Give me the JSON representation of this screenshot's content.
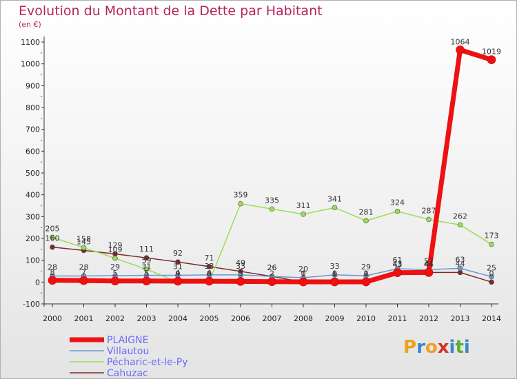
{
  "header": {
    "title": "Evolution du Montant de la Dette par Habitant",
    "unit": "(en €)"
  },
  "logo": {
    "text": "Proxiti",
    "letters": [
      "P",
      "r",
      "o",
      "x",
      "i",
      "t",
      "i"
    ],
    "colors": [
      "#f0a020",
      "#3b88c8",
      "#f0a020",
      "#d83028",
      "#3b88c8",
      "#58b030",
      "#3b88c8"
    ]
  },
  "chart_data": {
    "type": "line",
    "title": "Evolution du Montant de la Dette par Habitant",
    "ylabel": "(en €)",
    "xlabel": "",
    "ylim": [
      -100,
      1100
    ],
    "yticks": [
      -100,
      0,
      100,
      200,
      300,
      400,
      500,
      600,
      700,
      800,
      900,
      1000,
      1100
    ],
    "x": [
      2000,
      2001,
      2002,
      2003,
      2004,
      2005,
      2006,
      2007,
      2008,
      2009,
      2010,
      2011,
      2012,
      2013,
      2014
    ],
    "grid": false,
    "legend_position": "bottom-left",
    "series": [
      {
        "name": "Villautou",
        "color": "#6699cc",
        "values": [
          28,
          28,
          29,
          31,
          31,
          33,
          33,
          26,
          20,
          33,
          29,
          61,
          57,
          63,
          25
        ]
      },
      {
        "name": "Pécharic-et-le-Py",
        "color": "#99dd55",
        "values": [
          205,
          158,
          109,
          59,
          0,
          0,
          359,
          335,
          311,
          341,
          281,
          324,
          287,
          262,
          173
        ]
      },
      {
        "name": "Cahuzac",
        "color": "#7a2a2a",
        "values": [
          160,
          145,
          129,
          111,
          92,
          71,
          49,
          26,
          0,
          0,
          0,
          43,
          44,
          44,
          0
        ]
      },
      {
        "name": "PLAIGNE",
        "color": "#ee1111",
        "values": [
          8,
          7,
          5,
          5,
          4,
          4,
          3,
          2,
          1,
          1,
          1,
          43,
          44,
          1064,
          1019
        ]
      }
    ],
    "labels": {
      "Villautou": [
        "28",
        "28",
        "29",
        "31",
        "31",
        "33",
        "33",
        "26",
        "20",
        "33",
        "29",
        "61",
        "57",
        "63",
        "25"
      ],
      "Pécharic-et-le-Py": [
        "205",
        "158",
        "109",
        "59",
        "0",
        "0",
        "359",
        "335",
        "311",
        "341",
        "281",
        "324",
        "287",
        "262",
        "173"
      ],
      "Cahuzac": [
        "160",
        "145",
        "129",
        "111",
        "92",
        "71",
        "49",
        "26",
        "0",
        "0",
        "0",
        "43",
        "44",
        "44",
        "0"
      ],
      "PLAIGNE": [
        "8",
        "7",
        "5",
        "5",
        "4",
        "4",
        "3",
        "2",
        "1",
        "1",
        "1",
        "43",
        "44",
        "1064",
        "1019"
      ]
    },
    "legend_order": [
      "PLAIGNE",
      "Villautou",
      "Pécharic-et-le-Py",
      "Cahuzac"
    ]
  }
}
